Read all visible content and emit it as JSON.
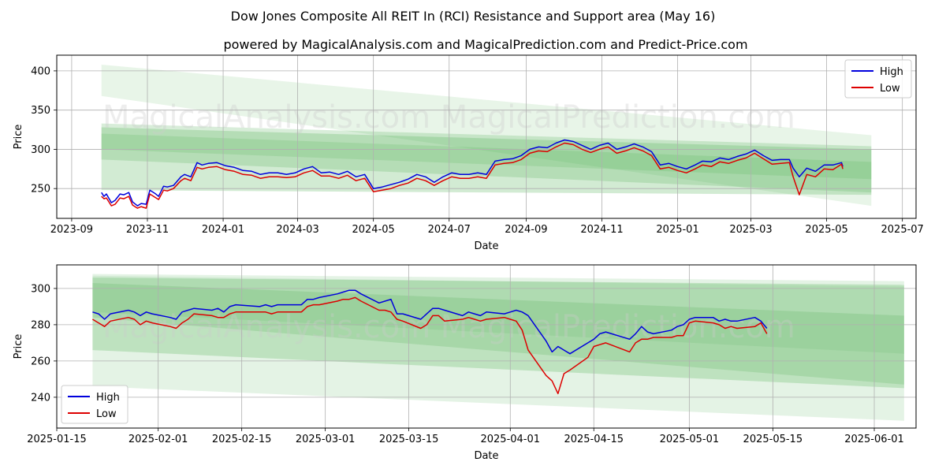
{
  "title": "Dow Jones Composite All REIT In (RCI) Resistance and Support area (May 16)",
  "subtitle": "powered by MagicalAnalysis.com and MagicalPrediction.com and Predict-Price.com",
  "watermark": "MagicalAnalysis.com    MagicalPrediction.com",
  "colors": {
    "high": "#0000dd",
    "low": "#dd0000",
    "band": "#4caf50"
  },
  "chart_data": [
    {
      "type": "line",
      "xlabel": "Date",
      "ylabel": "Price",
      "x_tick_labels": [
        "2023-09",
        "2023-11",
        "2024-01",
        "2024-03",
        "2024-05",
        "2024-07",
        "2024-09",
        "2024-11",
        "2025-01",
        "2025-03",
        "2025-05",
        "2025-07"
      ],
      "y_ticks": [
        250,
        300,
        350,
        400
      ],
      "ylim": [
        212,
        420
      ],
      "xlim": [
        "2023-08-20",
        "2025-07-12"
      ],
      "grid": true,
      "legend": {
        "position": "top-right",
        "entries": [
          "High",
          "Low"
        ]
      },
      "series": [
        {
          "name": "High",
          "x": [
            "2023-09-25",
            "2023-09-27",
            "2023-09-29",
            "2023-10-03",
            "2023-10-06",
            "2023-10-10",
            "2023-10-13",
            "2023-10-17",
            "2023-10-20",
            "2023-10-24",
            "2023-10-27",
            "2023-10-31",
            "2023-11-03",
            "2023-11-07",
            "2023-11-10",
            "2023-11-14",
            "2023-11-17",
            "2023-11-22",
            "2023-11-28",
            "2023-12-01",
            "2023-12-06",
            "2023-12-11",
            "2023-12-15",
            "2023-12-20",
            "2023-12-27",
            "2024-01-03",
            "2024-01-10",
            "2024-01-17",
            "2024-01-24",
            "2024-01-31",
            "2024-02-07",
            "2024-02-14",
            "2024-02-21",
            "2024-02-28",
            "2024-03-06",
            "2024-03-13",
            "2024-03-20",
            "2024-03-27",
            "2024-04-03",
            "2024-04-10",
            "2024-04-17",
            "2024-04-24",
            "2024-05-01",
            "2024-05-08",
            "2024-05-15",
            "2024-05-22",
            "2024-05-29",
            "2024-06-05",
            "2024-06-12",
            "2024-06-19",
            "2024-06-26",
            "2024-07-03",
            "2024-07-10",
            "2024-07-17",
            "2024-07-24",
            "2024-07-31",
            "2024-08-07",
            "2024-08-14",
            "2024-08-21",
            "2024-08-28",
            "2024-09-04",
            "2024-09-11",
            "2024-09-18",
            "2024-09-25",
            "2024-10-02",
            "2024-10-09",
            "2024-10-16",
            "2024-10-23",
            "2024-10-30",
            "2024-11-06",
            "2024-11-13",
            "2024-11-20",
            "2024-11-27",
            "2024-12-04",
            "2024-12-11",
            "2024-12-18",
            "2024-12-25",
            "2025-01-01",
            "2025-01-08",
            "2025-01-15",
            "2025-01-21",
            "2025-01-28",
            "2025-02-04",
            "2025-02-11",
            "2025-02-18",
            "2025-02-25",
            "2025-03-04",
            "2025-03-11",
            "2025-03-18",
            "2025-03-25",
            "2025-04-01",
            "2025-04-04",
            "2025-04-09",
            "2025-04-15",
            "2025-04-22",
            "2025-04-29",
            "2025-05-06",
            "2025-05-13",
            "2025-05-14"
          ],
          "values": [
            245,
            240,
            243,
            232,
            235,
            243,
            242,
            245,
            233,
            228,
            231,
            230,
            248,
            244,
            240,
            253,
            252,
            254,
            265,
            268,
            265,
            283,
            280,
            282,
            283,
            279,
            277,
            273,
            272,
            268,
            270,
            270,
            268,
            270,
            275,
            278,
            270,
            271,
            268,
            272,
            265,
            268,
            250,
            252,
            255,
            258,
            262,
            268,
            265,
            258,
            265,
            270,
            268,
            268,
            270,
            268,
            285,
            287,
            288,
            292,
            300,
            303,
            302,
            308,
            312,
            310,
            305,
            300,
            305,
            308,
            300,
            303,
            307,
            303,
            297,
            280,
            282,
            278,
            275,
            280,
            285,
            284,
            289,
            287,
            291,
            294,
            299,
            292,
            286,
            287,
            287,
            276,
            265,
            276,
            272,
            280,
            280,
            283,
            278
          ]
        },
        {
          "name": "Low",
          "x": [
            "2023-09-25",
            "2023-09-27",
            "2023-09-29",
            "2023-10-03",
            "2023-10-06",
            "2023-10-10",
            "2023-10-13",
            "2023-10-17",
            "2023-10-20",
            "2023-10-24",
            "2023-10-27",
            "2023-10-31",
            "2023-11-03",
            "2023-11-07",
            "2023-11-10",
            "2023-11-14",
            "2023-11-17",
            "2023-11-22",
            "2023-11-28",
            "2023-12-01",
            "2023-12-06",
            "2023-12-11",
            "2023-12-15",
            "2023-12-20",
            "2023-12-27",
            "2024-01-03",
            "2024-01-10",
            "2024-01-17",
            "2024-01-24",
            "2024-01-31",
            "2024-02-07",
            "2024-02-14",
            "2024-02-21",
            "2024-02-28",
            "2024-03-06",
            "2024-03-13",
            "2024-03-20",
            "2024-03-27",
            "2024-04-03",
            "2024-04-10",
            "2024-04-17",
            "2024-04-24",
            "2024-05-01",
            "2024-05-08",
            "2024-05-15",
            "2024-05-22",
            "2024-05-29",
            "2024-06-05",
            "2024-06-12",
            "2024-06-19",
            "2024-06-26",
            "2024-07-03",
            "2024-07-10",
            "2024-07-17",
            "2024-07-24",
            "2024-07-31",
            "2024-08-07",
            "2024-08-14",
            "2024-08-21",
            "2024-08-28",
            "2024-09-04",
            "2024-09-11",
            "2024-09-18",
            "2024-09-25",
            "2024-10-02",
            "2024-10-09",
            "2024-10-16",
            "2024-10-23",
            "2024-10-30",
            "2024-11-06",
            "2024-11-13",
            "2024-11-20",
            "2024-11-27",
            "2024-12-04",
            "2024-12-11",
            "2024-12-18",
            "2024-12-25",
            "2025-01-01",
            "2025-01-08",
            "2025-01-15",
            "2025-01-21",
            "2025-01-28",
            "2025-02-04",
            "2025-02-11",
            "2025-02-18",
            "2025-02-25",
            "2025-03-04",
            "2025-03-11",
            "2025-03-18",
            "2025-03-25",
            "2025-04-01",
            "2025-04-04",
            "2025-04-09",
            "2025-04-15",
            "2025-04-22",
            "2025-04-29",
            "2025-05-06",
            "2025-05-13",
            "2025-05-14"
          ],
          "values": [
            240,
            237,
            238,
            228,
            230,
            238,
            237,
            240,
            229,
            225,
            227,
            225,
            243,
            239,
            236,
            248,
            247,
            250,
            260,
            263,
            260,
            277,
            275,
            277,
            278,
            274,
            272,
            268,
            267,
            263,
            265,
            265,
            264,
            265,
            270,
            273,
            266,
            266,
            263,
            267,
            260,
            263,
            246,
            248,
            250,
            254,
            257,
            263,
            260,
            254,
            260,
            265,
            263,
            263,
            265,
            263,
            280,
            282,
            283,
            287,
            295,
            298,
            297,
            303,
            308,
            306,
            300,
            296,
            300,
            303,
            295,
            298,
            302,
            298,
            292,
            275,
            277,
            273,
            270,
            275,
            280,
            278,
            284,
            282,
            286,
            289,
            295,
            288,
            281,
            282,
            283,
            265,
            242,
            268,
            265,
            275,
            274,
            281,
            275
          ]
        }
      ]
    },
    {
      "type": "line",
      "xlabel": "Date",
      "ylabel": "Price",
      "x_tick_labels": [
        "2025-01-15",
        "2025-02-01",
        "2025-02-15",
        "2025-03-01",
        "2025-03-15",
        "2025-04-01",
        "2025-04-15",
        "2025-05-01",
        "2025-05-15",
        "2025-06-01"
      ],
      "y_ticks": [
        240,
        260,
        280,
        300
      ],
      "ylim": [
        223,
        313
      ],
      "xlim": [
        "2025-01-15",
        "2025-06-08"
      ],
      "grid": true,
      "legend": {
        "position": "bottom-left",
        "entries": [
          "High",
          "Low"
        ]
      },
      "series": [
        {
          "name": "High",
          "x": [
            "2025-01-21",
            "2025-01-22",
            "2025-01-23",
            "2025-01-24",
            "2025-01-27",
            "2025-01-28",
            "2025-01-29",
            "2025-01-30",
            "2025-01-31",
            "2025-02-03",
            "2025-02-04",
            "2025-02-05",
            "2025-02-06",
            "2025-02-07",
            "2025-02-10",
            "2025-02-11",
            "2025-02-12",
            "2025-02-13",
            "2025-02-14",
            "2025-02-18",
            "2025-02-19",
            "2025-02-20",
            "2025-02-21",
            "2025-02-24",
            "2025-02-25",
            "2025-02-26",
            "2025-02-27",
            "2025-02-28",
            "2025-03-03",
            "2025-03-04",
            "2025-03-05",
            "2025-03-06",
            "2025-03-07",
            "2025-03-10",
            "2025-03-11",
            "2025-03-12",
            "2025-03-13",
            "2025-03-14",
            "2025-03-17",
            "2025-03-18",
            "2025-03-19",
            "2025-03-20",
            "2025-03-21",
            "2025-03-24",
            "2025-03-25",
            "2025-03-26",
            "2025-03-27",
            "2025-03-28",
            "2025-03-31",
            "2025-04-01",
            "2025-04-02",
            "2025-04-03",
            "2025-04-04",
            "2025-04-07",
            "2025-04-08",
            "2025-04-09",
            "2025-04-10",
            "2025-04-11",
            "2025-04-14",
            "2025-04-15",
            "2025-04-16",
            "2025-04-17",
            "2025-04-21",
            "2025-04-22",
            "2025-04-23",
            "2025-04-24",
            "2025-04-25",
            "2025-04-28",
            "2025-04-29",
            "2025-04-30",
            "2025-05-01",
            "2025-05-02",
            "2025-05-05",
            "2025-05-06",
            "2025-05-07",
            "2025-05-08",
            "2025-05-09",
            "2025-05-12",
            "2025-05-13",
            "2025-05-14"
          ],
          "values": [
            287,
            286,
            283,
            286,
            288,
            287,
            285,
            287,
            286,
            284,
            283,
            287,
            288,
            289,
            288,
            289,
            287,
            290,
            291,
            290,
            291,
            290,
            291,
            291,
            291,
            294,
            294,
            295,
            297,
            298,
            299,
            299,
            297,
            292,
            293,
            294,
            286,
            286,
            283,
            286,
            289,
            289,
            288,
            285,
            287,
            286,
            285,
            287,
            286,
            287,
            288,
            287,
            285,
            271,
            265,
            268,
            266,
            264,
            270,
            272,
            275,
            276,
            272,
            275,
            279,
            276,
            275,
            277,
            279,
            280,
            283,
            284,
            284,
            282,
            283,
            282,
            282,
            284,
            282,
            278
          ]
        },
        {
          "name": "Low",
          "x": [
            "2025-01-21",
            "2025-01-22",
            "2025-01-23",
            "2025-01-24",
            "2025-01-27",
            "2025-01-28",
            "2025-01-29",
            "2025-01-30",
            "2025-01-31",
            "2025-02-03",
            "2025-02-04",
            "2025-02-05",
            "2025-02-06",
            "2025-02-07",
            "2025-02-10",
            "2025-02-11",
            "2025-02-12",
            "2025-02-13",
            "2025-02-14",
            "2025-02-18",
            "2025-02-19",
            "2025-02-20",
            "2025-02-21",
            "2025-02-24",
            "2025-02-25",
            "2025-02-26",
            "2025-02-27",
            "2025-02-28",
            "2025-03-03",
            "2025-03-04",
            "2025-03-05",
            "2025-03-06",
            "2025-03-07",
            "2025-03-10",
            "2025-03-11",
            "2025-03-12",
            "2025-03-13",
            "2025-03-14",
            "2025-03-17",
            "2025-03-18",
            "2025-03-19",
            "2025-03-20",
            "2025-03-21",
            "2025-03-24",
            "2025-03-25",
            "2025-03-26",
            "2025-03-27",
            "2025-03-28",
            "2025-03-31",
            "2025-04-01",
            "2025-04-02",
            "2025-04-03",
            "2025-04-04",
            "2025-04-07",
            "2025-04-08",
            "2025-04-09",
            "2025-04-10",
            "2025-04-11",
            "2025-04-14",
            "2025-04-15",
            "2025-04-16",
            "2025-04-17",
            "2025-04-21",
            "2025-04-22",
            "2025-04-23",
            "2025-04-24",
            "2025-04-25",
            "2025-04-28",
            "2025-04-29",
            "2025-04-30",
            "2025-05-01",
            "2025-05-02",
            "2025-05-05",
            "2025-05-06",
            "2025-05-07",
            "2025-05-08",
            "2025-05-09",
            "2025-05-12",
            "2025-05-13",
            "2025-05-14"
          ],
          "values": [
            283,
            281,
            279,
            282,
            284,
            283,
            280,
            282,
            281,
            279,
            278,
            281,
            283,
            286,
            285,
            284,
            284,
            286,
            287,
            287,
            287,
            286,
            287,
            287,
            287,
            290,
            291,
            291,
            293,
            294,
            294,
            295,
            293,
            288,
            288,
            287,
            283,
            282,
            278,
            280,
            285,
            285,
            282,
            283,
            284,
            283,
            282,
            283,
            284,
            283,
            282,
            277,
            266,
            252,
            249,
            242,
            253,
            255,
            262,
            268,
            269,
            270,
            265,
            270,
            272,
            272,
            273,
            273,
            274,
            274,
            281,
            282,
            281,
            280,
            278,
            279,
            278,
            279,
            281,
            275
          ]
        }
      ]
    }
  ]
}
